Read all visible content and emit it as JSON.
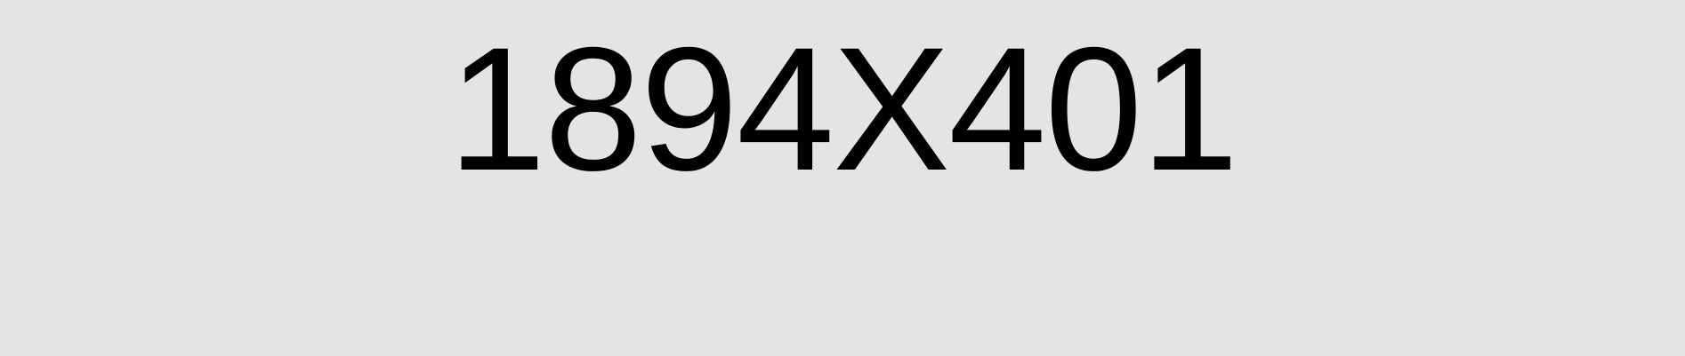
{
  "canvas": {
    "label": "1894X401",
    "background_color": "#e4e4e4",
    "text_color": "#000000"
  }
}
